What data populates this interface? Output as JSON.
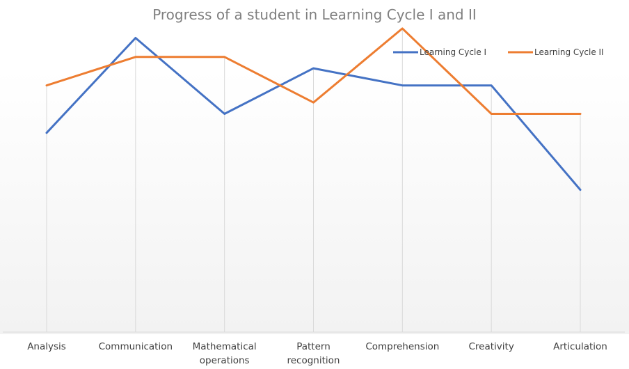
{
  "chart_data": {
    "type": "line",
    "title": "Progress of a student in Learning Cycle I and II",
    "categories": [
      [
        "Analysis"
      ],
      [
        "Communication"
      ],
      [
        "Mathematical",
        "operations"
      ],
      [
        "Pattern",
        "recognition"
      ],
      [
        "Comprehension"
      ],
      [
        "Creativity"
      ],
      [
        "Articulation"
      ]
    ],
    "series": [
      {
        "name": "Learning Cycle I",
        "color": "#4472c4",
        "values": [
          5.0,
          10.0,
          6.0,
          8.4,
          7.5,
          7.5,
          2.0
        ]
      },
      {
        "name": "Learning Cycle II",
        "color": "#ed7d31",
        "values": [
          7.5,
          9.0,
          9.0,
          6.6,
          10.5,
          6.0,
          6.0
        ]
      }
    ],
    "ylim": [
      -5.5,
      12
    ],
    "xlabel": "",
    "ylabel": "",
    "legend_position": "top-right",
    "grid": "vertical drop lines"
  }
}
